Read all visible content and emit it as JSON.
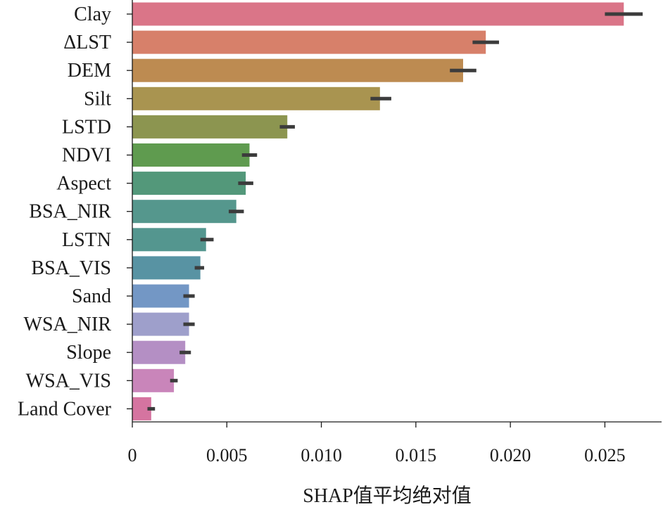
{
  "chart_data": {
    "type": "bar",
    "orientation": "horizontal",
    "categories": [
      "Clay",
      "ΔLST",
      "DEM",
      "Silt",
      "LSTD",
      "NDVI",
      "Aspect",
      "BSA_NIR",
      "LSTN",
      "BSA_VIS",
      "Sand",
      "WSA_NIR",
      "Slope",
      "WSA_VIS",
      "Land Cover"
    ],
    "values": [
      0.026,
      0.0187,
      0.0175,
      0.0131,
      0.0082,
      0.0062,
      0.006,
      0.0055,
      0.0039,
      0.0036,
      0.003,
      0.003,
      0.0028,
      0.0022,
      0.001
    ],
    "error_low": [
      0.025,
      0.018,
      0.0168,
      0.0126,
      0.0078,
      0.0058,
      0.0056,
      0.0051,
      0.0036,
      0.0033,
      0.0027,
      0.0027,
      0.0025,
      0.002,
      0.0008
    ],
    "error_high": [
      0.027,
      0.0194,
      0.0182,
      0.0137,
      0.0086,
      0.0066,
      0.0064,
      0.0059,
      0.0043,
      0.0038,
      0.0033,
      0.0033,
      0.0031,
      0.0024,
      0.0012
    ],
    "colors": [
      "#da7588",
      "#d7806a",
      "#bd8b51",
      "#a99450",
      "#8c9550",
      "#5f9b4f",
      "#53987a",
      "#55978d",
      "#54968f",
      "#5893a3",
      "#7397c5",
      "#9e9fcb",
      "#b48fc4",
      "#c985ba",
      "#d574a0"
    ],
    "xlabel": "SHAP值平均绝对值",
    "ylabel": "",
    "xlim": [
      0,
      0.028
    ],
    "xticks": [
      0,
      0.005,
      0.01,
      0.015,
      0.02,
      0.025
    ],
    "xtick_labels": [
      "0",
      "0.005",
      "0.010",
      "0.015",
      "0.020",
      "0.025"
    ],
    "grid": false,
    "legend": "none"
  }
}
